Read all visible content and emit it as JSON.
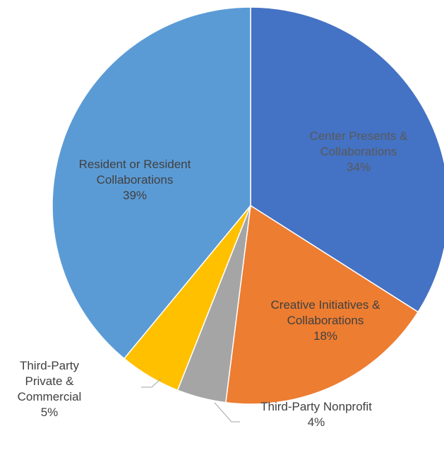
{
  "chart_data": {
    "type": "pie",
    "title": "",
    "start": "12 o'clock",
    "direction": "clockwise",
    "slices": [
      {
        "label_lines": [
          "Center Presents &",
          "Collaborations"
        ],
        "percent_label": "34%",
        "value": 34,
        "color": "#4472c4",
        "label_color": "#595959"
      },
      {
        "label_lines": [
          "Creative Initiatives &",
          "Collaborations"
        ],
        "percent_label": "18%",
        "value": 18,
        "color": "#ed7d31",
        "label_color": "#404040"
      },
      {
        "label_lines": [
          "Third-Party Nonprofit"
        ],
        "percent_label": "4%",
        "value": 4,
        "color": "#a5a5a5",
        "label_color": "#404040"
      },
      {
        "label_lines": [
          "Third-Party",
          "Private &",
          "Commercial"
        ],
        "percent_label": "5%",
        "value": 5,
        "color": "#ffc000",
        "label_color": "#404040"
      },
      {
        "label_lines": [
          "Resident or Resident",
          "Collaborations"
        ],
        "percent_label": "39%",
        "value": 39,
        "color": "#5b9bd5",
        "label_color": "#404040"
      }
    ]
  }
}
